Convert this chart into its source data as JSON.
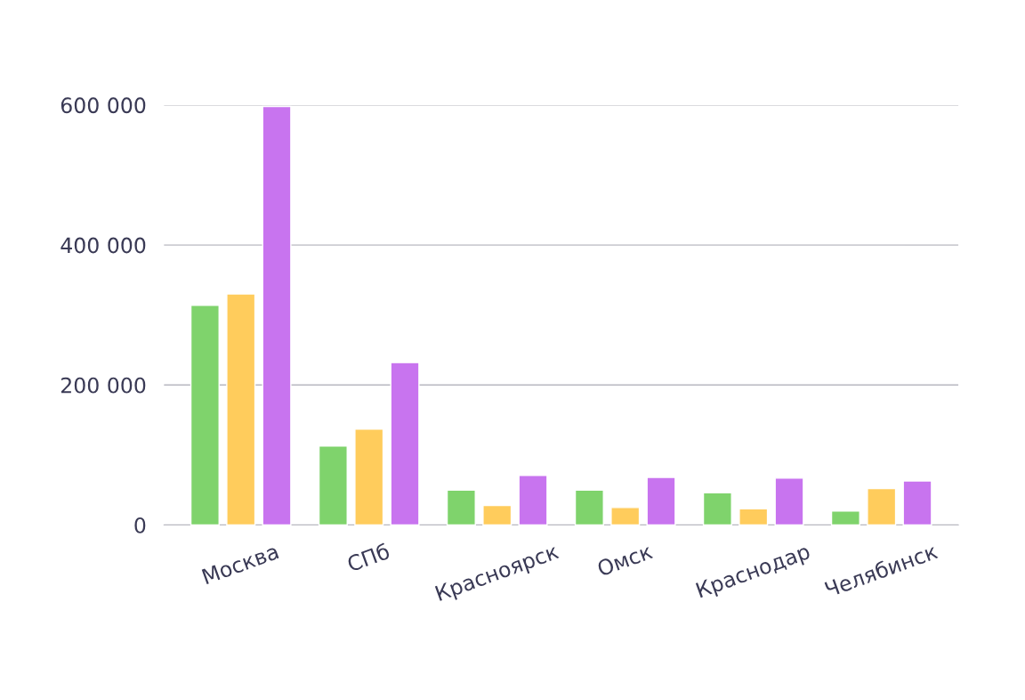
{
  "chart_data": {
    "type": "bar",
    "categories": [
      "Москва",
      "СПб",
      "Красноярск",
      "Омск",
      "Краснодар",
      "Челябинск"
    ],
    "series": [
      {
        "color": "#7fd36c",
        "values": [
          314000,
          113000,
          50000,
          50000,
          46000,
          20000
        ]
      },
      {
        "color": "#ffcc5c",
        "values": [
          330000,
          137000,
          28000,
          25000,
          23000,
          52000
        ]
      },
      {
        "color": "#c874ef",
        "values": [
          598000,
          232000,
          71000,
          68000,
          67000,
          63000
        ]
      }
    ],
    "ylim": [
      0,
      600000
    ],
    "yticks": [
      {
        "value": 0,
        "label": "0"
      },
      {
        "value": 200000,
        "label": "200 000"
      },
      {
        "value": 400000,
        "label": "400 000"
      },
      {
        "value": 600000,
        "label": "600 000"
      }
    ],
    "grid": "y",
    "legend": false
  }
}
